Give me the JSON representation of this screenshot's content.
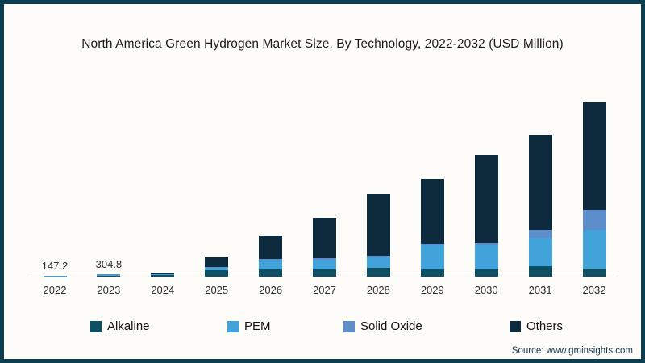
{
  "source": "Source: www.gminsights.com",
  "colors": {
    "frame_border": "#0b3e4f",
    "background": "#fdfcf8",
    "axis_line": "#d6d6d6"
  },
  "chart_data": {
    "type": "bar",
    "stacked": true,
    "title": "North America Green Hydrogen Market Size, By Technology, 2022-2032 (USD Million)",
    "unit": "USD Million",
    "categories": [
      "2022",
      "2023",
      "2024",
      "2025",
      "2026",
      "2027",
      "2028",
      "2029",
      "2030",
      "2031",
      "2032"
    ],
    "series": [
      {
        "name": "Alkaline",
        "color": "#0f4f64",
        "values": [
          40,
          90,
          250,
          800,
          900,
          900,
          1100,
          900,
          900,
          1300,
          1000
        ]
      },
      {
        "name": "PEM",
        "color": "#41a3d9",
        "values": [
          80,
          160,
          50,
          300,
          1200,
          1200,
          1300,
          3000,
          3000,
          3500,
          4800
        ]
      },
      {
        "name": "Solid Oxide",
        "color": "#5e8dcb",
        "values": [
          7.2,
          14.8,
          20,
          100,
          100,
          200,
          200,
          200,
          300,
          1000,
          2500
        ]
      },
      {
        "name": "Others",
        "color": "#0e2b3d",
        "values": [
          20,
          40,
          180,
          1200,
          2900,
          5000,
          7700,
          8000,
          10900,
          11800,
          13300
        ]
      }
    ],
    "totals": [
      147.2,
      304.8,
      500,
      2400,
      5100,
      7300,
      10300,
      12100,
      15100,
      17600,
      21600
    ],
    "data_labels": {
      "2022": "147.2",
      "2023": "304.8"
    },
    "legend_position": "bottom",
    "grid": false,
    "y_axis_visible": false,
    "ylim": [
      0,
      22000
    ],
    "xlabel": "",
    "ylabel": ""
  }
}
